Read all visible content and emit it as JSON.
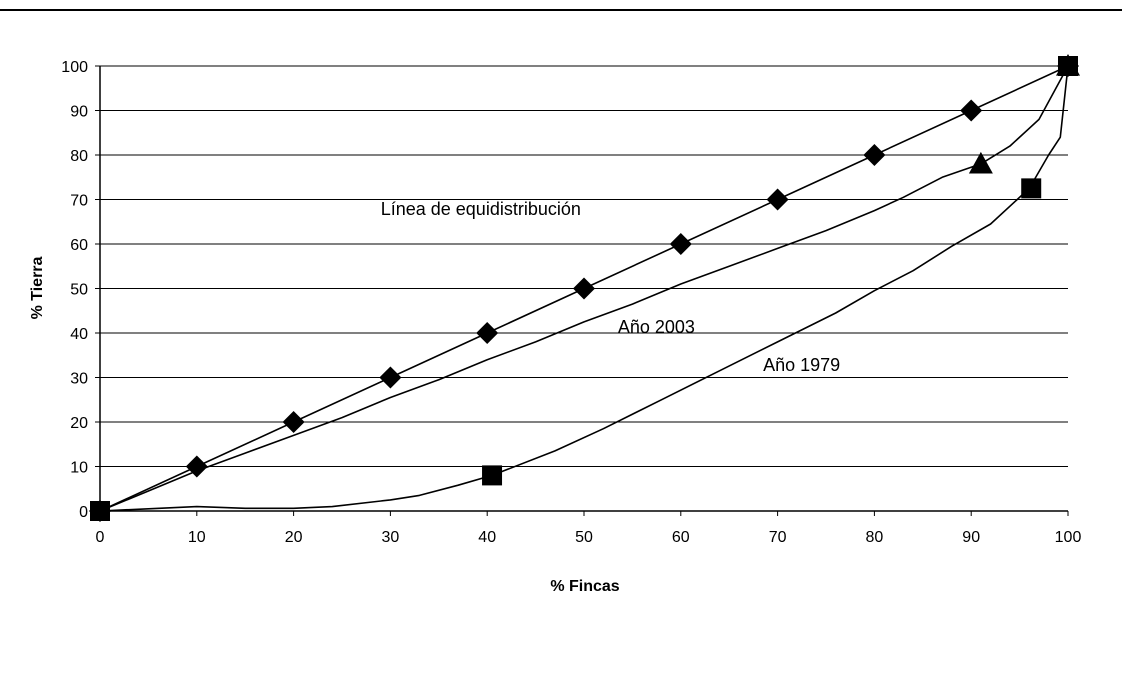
{
  "chart_data": {
    "type": "line",
    "title": "",
    "xlabel": "% Fincas",
    "ylabel": "% Tierra",
    "xlim": [
      0,
      100
    ],
    "ylim": [
      0,
      100
    ],
    "xticks": [
      "0",
      "10",
      "20",
      "30",
      "40",
      "50",
      "60",
      "70",
      "80",
      "90",
      "100"
    ],
    "yticks": [
      "0",
      "10",
      "20",
      "30",
      "40",
      "50",
      "60",
      "70",
      "80",
      "90",
      "100"
    ],
    "grid": "horizontal",
    "legend": "none",
    "series": [
      {
        "marker": "diamond",
        "curve": [
          [
            0,
            0
          ],
          [
            10,
            10
          ],
          [
            20,
            20
          ],
          [
            30,
            30
          ],
          [
            40,
            40
          ],
          [
            50,
            50
          ],
          [
            60,
            60
          ],
          [
            70,
            70
          ],
          [
            80,
            80
          ],
          [
            90,
            90
          ],
          [
            100,
            100
          ]
        ],
        "markers": [
          [
            0,
            0
          ],
          [
            10,
            10
          ],
          [
            20,
            20
          ],
          [
            30,
            30
          ],
          [
            40,
            40
          ],
          [
            50,
            50
          ],
          [
            60,
            60
          ],
          [
            70,
            70
          ],
          [
            80,
            80
          ],
          [
            90,
            90
          ],
          [
            100,
            100
          ]
        ]
      },
      {
        "marker": "triangle",
        "curve": [
          [
            0,
            0
          ],
          [
            5,
            4.5
          ],
          [
            10,
            9
          ],
          [
            15,
            13
          ],
          [
            20,
            17
          ],
          [
            25,
            21
          ],
          [
            30,
            25.5
          ],
          [
            35,
            29.5
          ],
          [
            40,
            34
          ],
          [
            45,
            38
          ],
          [
            50,
            42.5
          ],
          [
            55,
            46.5
          ],
          [
            60,
            51
          ],
          [
            65,
            55
          ],
          [
            70,
            59
          ],
          [
            75,
            63
          ],
          [
            80,
            67.5
          ],
          [
            83,
            70.5
          ],
          [
            87,
            75
          ],
          [
            91,
            78
          ],
          [
            94,
            82
          ],
          [
            97,
            88
          ],
          [
            100,
            100
          ]
        ],
        "markers": [
          [
            91,
            78
          ],
          [
            100,
            100
          ]
        ]
      },
      {
        "marker": "square",
        "curve": [
          [
            0,
            0
          ],
          [
            5,
            0.5
          ],
          [
            10,
            1
          ],
          [
            15,
            0.6
          ],
          [
            20,
            0.6
          ],
          [
            24,
            1
          ],
          [
            30,
            2.5
          ],
          [
            33,
            3.5
          ],
          [
            37,
            5.8
          ],
          [
            40.5,
            8
          ],
          [
            47,
            13.5
          ],
          [
            52,
            18.5
          ],
          [
            58,
            25
          ],
          [
            64,
            31.5
          ],
          [
            70,
            38
          ],
          [
            76,
            44.5
          ],
          [
            80,
            49.5
          ],
          [
            84,
            54
          ],
          [
            88,
            59.5
          ],
          [
            92,
            64.5
          ],
          [
            96,
            72.5
          ],
          [
            98,
            80
          ],
          [
            99.2,
            84
          ],
          [
            100,
            100
          ]
        ],
        "markers": [
          [
            0,
            0
          ],
          [
            40.5,
            8
          ],
          [
            96.2,
            72.5
          ],
          [
            100,
            100
          ]
        ]
      }
    ],
    "annotations": [
      {
        "text": "Línea de equidistribución",
        "x": 29,
        "y": 66.5
      },
      {
        "text": "Año 2003",
        "x": 53.5,
        "y": 40
      },
      {
        "text": "Año 1979",
        "x": 68.5,
        "y": 31.5
      }
    ]
  }
}
